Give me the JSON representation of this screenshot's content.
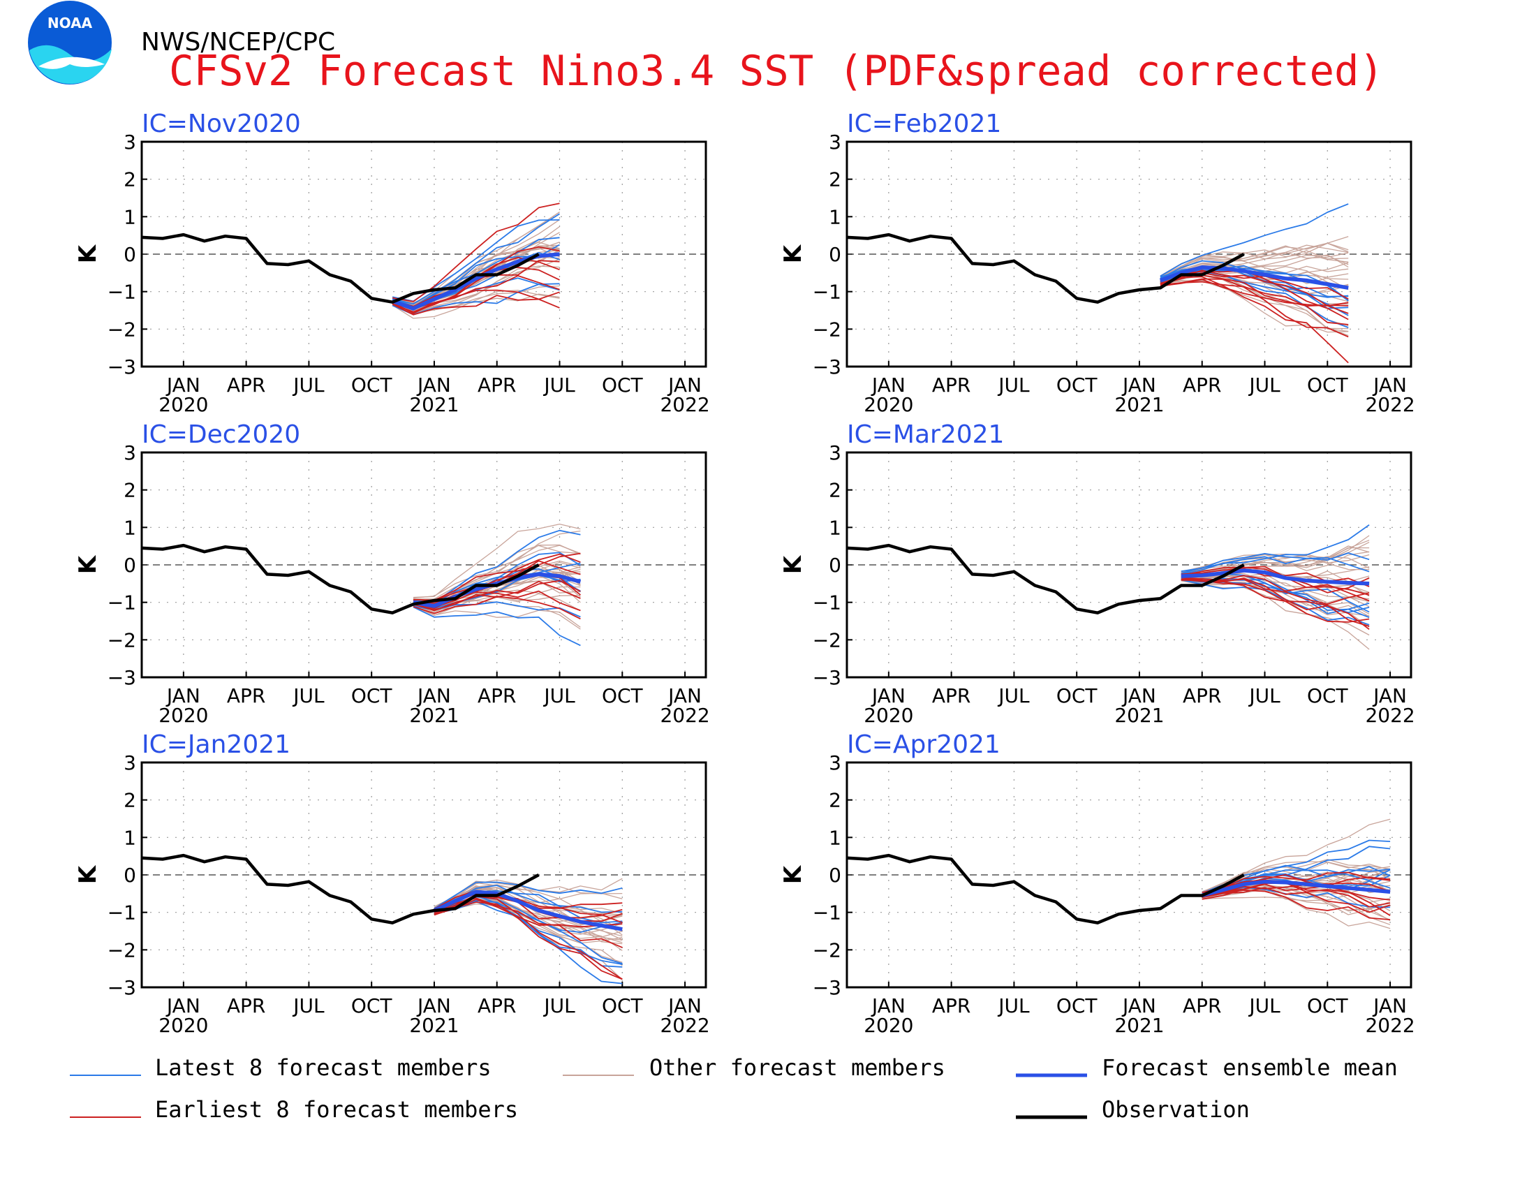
{
  "header": {
    "agency": "NWS/NCEP/CPC",
    "title": "CFSv2 Forecast Nino3.4 SST (PDF&spread corrected)",
    "logo_text": "NOAA"
  },
  "colors": {
    "latest": "#2a7ae8",
    "other": "#c8a49a",
    "mean": "#2a50e6",
    "earliest": "#cc2020",
    "observation": "#000000",
    "ic_label": "#2a50e6",
    "title": "#e8141c"
  },
  "legend": {
    "latest": "Latest 8 forecast members",
    "other": "Other forecast members",
    "mean": "Forecast ensemble mean",
    "earliest": "Earliest 8 forecast members",
    "observation": "Observation"
  },
  "chart_data": {
    "type": "line",
    "ylabel": "K",
    "ylim": [
      -3,
      3
    ],
    "yticks": [
      3,
      2,
      1,
      0,
      -1,
      -2,
      -3
    ],
    "xlim": [
      "2019-11",
      "2022-02"
    ],
    "xticks": [
      {
        "month": "JAN",
        "year": "2020"
      },
      {
        "month": "APR",
        "year": ""
      },
      {
        "month": "JUL",
        "year": ""
      },
      {
        "month": "OCT",
        "year": ""
      },
      {
        "month": "JAN",
        "year": "2021"
      },
      {
        "month": "APR",
        "year": ""
      },
      {
        "month": "JUL",
        "year": ""
      },
      {
        "month": "OCT",
        "year": ""
      },
      {
        "month": "JAN",
        "year": "2022"
      }
    ],
    "observation": {
      "start": "2019-11",
      "values": [
        0.45,
        0.42,
        0.52,
        0.35,
        0.48,
        0.42,
        -0.25,
        -0.28,
        -0.18,
        -0.55,
        -0.72,
        -1.18,
        -1.28,
        -1.05,
        -0.95,
        -0.9,
        -0.55,
        -0.55,
        -0.3,
        0.0
      ]
    },
    "panels": [
      {
        "ic": "IC=Nov2020",
        "start": "2020-11",
        "end": "2021-07",
        "mean": [
          -1.25,
          -1.45,
          -1.2,
          -0.95,
          -0.65,
          -0.4,
          -0.2,
          -0.05,
          0.0
        ]
      },
      {
        "ic": "IC=Feb2021",
        "start": "2021-02",
        "end": "2021-11",
        "mean": [
          -0.7,
          -0.5,
          -0.35,
          -0.38,
          -0.45,
          -0.55,
          -0.65,
          -0.7,
          -0.8,
          -0.9
        ]
      },
      {
        "ic": "IC=Dec2020",
        "start": "2020-12",
        "end": "2021-08",
        "mean": [
          -1.0,
          -1.1,
          -0.85,
          -0.65,
          -0.5,
          -0.35,
          -0.25,
          -0.3,
          -0.45
        ]
      },
      {
        "ic": "IC=Mar2021",
        "start": "2021-03",
        "end": "2021-12",
        "mean": [
          -0.3,
          -0.28,
          -0.22,
          -0.15,
          -0.2,
          -0.35,
          -0.42,
          -0.45,
          -0.48,
          -0.5
        ]
      },
      {
        "ic": "IC=Jan2021",
        "start": "2021-01",
        "end": "2021-10",
        "mean": [
          -0.95,
          -0.7,
          -0.45,
          -0.5,
          -0.7,
          -0.95,
          -1.1,
          -1.25,
          -1.35,
          -1.45
        ]
      },
      {
        "ic": "IC=Apr2021",
        "start": "2021-04",
        "end": "2022-01",
        "mean": [
          -0.55,
          -0.4,
          -0.25,
          -0.18,
          -0.2,
          -0.25,
          -0.3,
          -0.35,
          -0.4,
          -0.45
        ]
      }
    ]
  }
}
